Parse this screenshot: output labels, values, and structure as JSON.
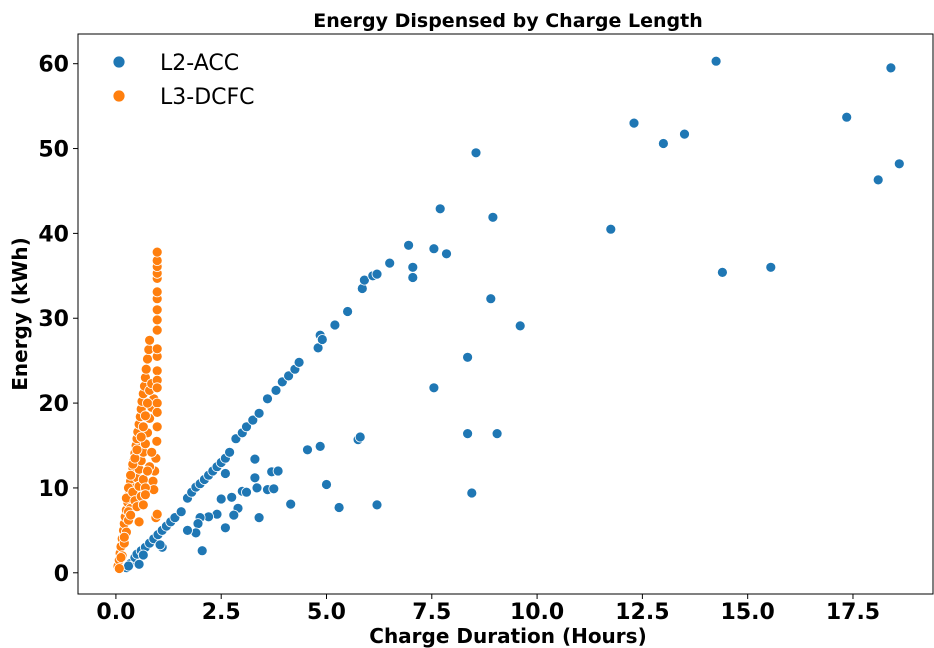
{
  "chart_data": {
    "type": "scatter",
    "title": "Energy Dispensed by Charge Length",
    "xlabel": "Charge Duration (Hours)",
    "ylabel": "Energy (kWh)",
    "xlim": [
      -0.9,
      19.4
    ],
    "ylim": [
      -2.5,
      63.5
    ],
    "xticks": [
      0.0,
      2.5,
      5.0,
      7.5,
      10.0,
      12.5,
      15.0,
      17.5
    ],
    "xtick_labels": [
      "0.0",
      "2.5",
      "5.0",
      "7.5",
      "10.0",
      "12.5",
      "15.0",
      "17.5"
    ],
    "yticks": [
      0,
      10,
      20,
      30,
      40,
      50,
      60
    ],
    "ytick_labels": [
      "0",
      "10",
      "20",
      "30",
      "40",
      "50",
      "60"
    ],
    "grid": false,
    "legend_position": "top-left",
    "series": [
      {
        "name": "L2-ACC",
        "color": "#1f77b4",
        "points": [
          [
            0.25,
            0.6
          ],
          [
            0.35,
            1.1
          ],
          [
            0.45,
            1.8
          ],
          [
            0.5,
            2.2
          ],
          [
            0.6,
            2.6
          ],
          [
            0.7,
            3.0
          ],
          [
            0.8,
            3.5
          ],
          [
            0.9,
            4.0
          ],
          [
            1.0,
            4.5
          ],
          [
            1.1,
            5.0
          ],
          [
            1.2,
            5.5
          ],
          [
            1.3,
            6.0
          ],
          [
            1.4,
            6.5
          ],
          [
            1.55,
            7.2
          ],
          [
            1.7,
            8.8
          ],
          [
            1.8,
            9.5
          ],
          [
            1.9,
            10.1
          ],
          [
            2.0,
            10.5
          ],
          [
            2.1,
            11.0
          ],
          [
            2.2,
            11.5
          ],
          [
            2.3,
            12.0
          ],
          [
            2.4,
            12.5
          ],
          [
            2.5,
            13.0
          ],
          [
            2.6,
            13.5
          ],
          [
            2.7,
            14.2
          ],
          [
            2.85,
            15.8
          ],
          [
            3.0,
            16.5
          ],
          [
            3.1,
            17.2
          ],
          [
            3.25,
            18.0
          ],
          [
            3.4,
            18.8
          ],
          [
            3.6,
            20.5
          ],
          [
            3.8,
            21.5
          ],
          [
            3.95,
            22.5
          ],
          [
            4.1,
            23.2
          ],
          [
            4.25,
            24.0
          ],
          [
            4.35,
            24.8
          ],
          [
            4.8,
            26.5
          ],
          [
            4.85,
            28.0
          ],
          [
            4.9,
            27.5
          ],
          [
            5.2,
            29.2
          ],
          [
            5.5,
            30.8
          ],
          [
            5.85,
            33.5
          ],
          [
            5.9,
            34.5
          ],
          [
            6.1,
            35.0
          ],
          [
            6.2,
            35.2
          ],
          [
            6.5,
            36.5
          ],
          [
            6.95,
            38.6
          ],
          [
            7.05,
            36.0
          ],
          [
            7.05,
            34.8
          ],
          [
            7.55,
            38.2
          ],
          [
            7.7,
            42.9
          ],
          [
            7.85,
            37.6
          ],
          [
            8.55,
            49.5
          ],
          [
            8.95,
            41.9
          ],
          [
            8.9,
            32.3
          ],
          [
            9.6,
            29.1
          ],
          [
            8.35,
            25.4
          ],
          [
            7.55,
            21.8
          ],
          [
            8.35,
            16.4
          ],
          [
            9.05,
            16.4
          ],
          [
            8.45,
            9.4
          ],
          [
            11.75,
            40.5
          ],
          [
            12.3,
            53.0
          ],
          [
            13.0,
            50.6
          ],
          [
            13.5,
            51.7
          ],
          [
            14.25,
            60.3
          ],
          [
            14.4,
            35.4
          ],
          [
            15.55,
            36.0
          ],
          [
            17.35,
            53.7
          ],
          [
            18.1,
            46.3
          ],
          [
            18.4,
            59.5
          ],
          [
            18.6,
            48.2
          ],
          [
            5.75,
            15.7
          ],
          [
            5.8,
            16.0
          ],
          [
            4.85,
            14.9
          ],
          [
            4.55,
            14.5
          ],
          [
            5.0,
            10.4
          ],
          [
            5.3,
            7.7
          ],
          [
            6.2,
            8.0
          ],
          [
            4.15,
            8.1
          ],
          [
            3.3,
            13.4
          ],
          [
            3.7,
            11.9
          ],
          [
            3.85,
            12.0
          ],
          [
            3.3,
            11.2
          ],
          [
            3.35,
            10.0
          ],
          [
            3.6,
            9.8
          ],
          [
            3.75,
            9.9
          ],
          [
            3.0,
            9.6
          ],
          [
            3.1,
            9.5
          ],
          [
            2.6,
            11.7
          ],
          [
            2.75,
            8.9
          ],
          [
            2.5,
            8.7
          ],
          [
            2.9,
            7.6
          ],
          [
            2.8,
            6.8
          ],
          [
            2.6,
            5.3
          ],
          [
            2.4,
            6.9
          ],
          [
            2.2,
            6.6
          ],
          [
            2.0,
            6.5
          ],
          [
            1.95,
            5.8
          ],
          [
            1.9,
            4.7
          ],
          [
            1.7,
            5.0
          ],
          [
            2.05,
            2.6
          ],
          [
            3.4,
            6.5
          ],
          [
            1.1,
            3.0
          ],
          [
            1.05,
            3.3
          ],
          [
            0.65,
            2.1
          ],
          [
            0.55,
            1.0
          ],
          [
            0.3,
            0.8
          ]
        ]
      },
      {
        "name": "L3-DCFC",
        "color": "#ff7f0e",
        "points": [
          [
            0.05,
            0.8
          ],
          [
            0.08,
            1.5
          ],
          [
            0.1,
            2.3
          ],
          [
            0.12,
            3.1
          ],
          [
            0.15,
            4.0
          ],
          [
            0.18,
            5.0
          ],
          [
            0.2,
            5.8
          ],
          [
            0.22,
            6.6
          ],
          [
            0.25,
            7.4
          ],
          [
            0.28,
            8.3
          ],
          [
            0.3,
            9.1
          ],
          [
            0.32,
            9.9
          ],
          [
            0.35,
            10.8
          ],
          [
            0.38,
            11.6
          ],
          [
            0.4,
            12.4
          ],
          [
            0.42,
            13.2
          ],
          [
            0.45,
            14.1
          ],
          [
            0.48,
            15.0
          ],
          [
            0.5,
            15.8
          ],
          [
            0.52,
            16.6
          ],
          [
            0.55,
            17.5
          ],
          [
            0.58,
            18.4
          ],
          [
            0.6,
            19.3
          ],
          [
            0.62,
            20.2
          ],
          [
            0.65,
            21.1
          ],
          [
            0.68,
            22.0
          ],
          [
            0.7,
            23.0
          ],
          [
            0.72,
            24.0
          ],
          [
            0.75,
            25.2
          ],
          [
            0.78,
            26.3
          ],
          [
            0.8,
            27.4
          ],
          [
            0.15,
            2.0
          ],
          [
            0.2,
            3.5
          ],
          [
            0.25,
            4.8
          ],
          [
            0.3,
            6.2
          ],
          [
            0.35,
            7.6
          ],
          [
            0.4,
            8.8
          ],
          [
            0.45,
            10.0
          ],
          [
            0.5,
            11.2
          ],
          [
            0.55,
            12.2
          ],
          [
            0.6,
            13.2
          ],
          [
            0.65,
            14.2
          ],
          [
            0.7,
            15.2
          ],
          [
            0.75,
            16.5
          ],
          [
            0.8,
            18.2
          ],
          [
            0.85,
            19.5
          ],
          [
            0.9,
            20.5
          ],
          [
            0.25,
            8.8
          ],
          [
            0.3,
            10.0
          ],
          [
            0.35,
            11.5
          ],
          [
            0.4,
            12.8
          ],
          [
            0.45,
            13.5
          ],
          [
            0.5,
            14.5
          ],
          [
            0.6,
            16.0
          ],
          [
            0.65,
            17.2
          ],
          [
            0.7,
            18.5
          ],
          [
            0.75,
            20.0
          ],
          [
            0.8,
            21.5
          ],
          [
            0.85,
            22.3
          ],
          [
            0.98,
            23.8
          ],
          [
            0.98,
            25.5
          ],
          [
            0.98,
            26.4
          ],
          [
            0.98,
            28.6
          ],
          [
            0.98,
            29.8
          ],
          [
            0.98,
            31.0
          ],
          [
            0.98,
            32.3
          ],
          [
            0.98,
            33.1
          ],
          [
            0.98,
            34.7
          ],
          [
            0.98,
            35.3
          ],
          [
            0.98,
            36.1
          ],
          [
            0.98,
            36.8
          ],
          [
            0.98,
            37.8
          ],
          [
            0.98,
            22.7
          ],
          [
            0.98,
            21.8
          ],
          [
            0.98,
            20.0
          ],
          [
            0.98,
            18.9
          ],
          [
            0.98,
            17.2
          ],
          [
            0.97,
            15.5
          ],
          [
            0.95,
            13.5
          ],
          [
            0.92,
            12.0
          ],
          [
            0.88,
            10.8
          ],
          [
            0.85,
            14.2
          ],
          [
            0.8,
            12.5
          ],
          [
            0.9,
            9.8
          ],
          [
            0.95,
            6.5
          ],
          [
            0.98,
            6.9
          ],
          [
            0.3,
            7.2
          ],
          [
            0.35,
            6.8
          ],
          [
            0.4,
            9.5
          ],
          [
            0.45,
            8.5
          ],
          [
            0.5,
            7.8
          ],
          [
            0.55,
            10.2
          ],
          [
            0.6,
            9.0
          ],
          [
            0.65,
            11.0
          ],
          [
            0.7,
            10.0
          ],
          [
            0.75,
            12.0
          ],
          [
            0.55,
            6.0
          ],
          [
            0.65,
            8.0
          ],
          [
            0.7,
            9.2
          ],
          [
            0.2,
            4.2
          ],
          [
            0.12,
            1.8
          ],
          [
            0.08,
            0.5
          ]
        ]
      }
    ]
  }
}
